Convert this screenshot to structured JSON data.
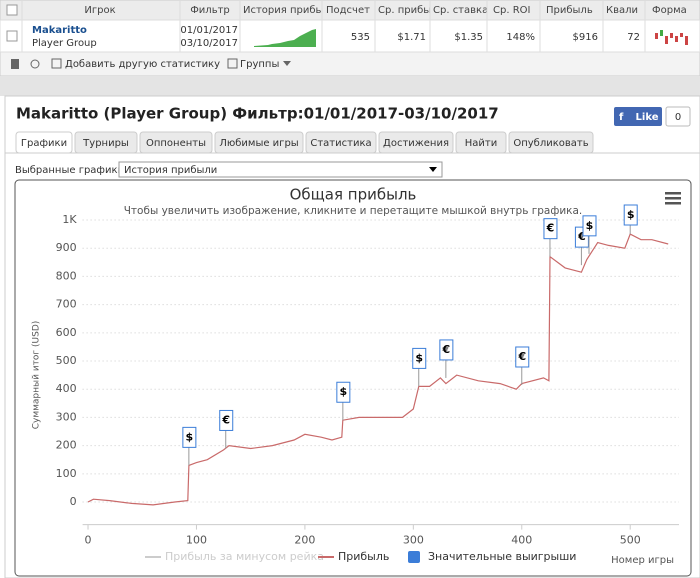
{
  "table": {
    "header": [
      "Игрок",
      "Фильтр",
      "История прибы",
      "Подсчет",
      "Ср. прибы",
      "Ср. ставка",
      "Ср. ROI",
      "Прибыль",
      "Квали",
      "Форма"
    ],
    "row": {
      "player": "Makaritto",
      "group": "Player Group",
      "dates": [
        "01/01/2017",
        "03/10/2017"
      ],
      "cells": [
        "535",
        "$1.71",
        "$1.35",
        "148%",
        "$916",
        "72"
      ]
    }
  },
  "toolbar": {
    "add_stats": "Добавить другую статистику",
    "groups": "Группы"
  },
  "panel": {
    "title": "Makaritto (Player Group) Фильтр:01/01/2017-03/10/2017",
    "like": "Like",
    "like_count": "0",
    "tabs": [
      "Графики",
      "Турниры",
      "Оппоненты",
      "Любимые игры",
      "Статистика",
      "Достижения",
      "Найти",
      "Опубликовать"
    ],
    "selector_label": "Выбранные графики:",
    "selector_value": "История прибыли"
  },
  "chart_data": {
    "type": "line",
    "title": "Общая прибыль",
    "subtitle": "Чтобы увеличить изображение, кликните и перетащите мышкой внутрь графика.",
    "y_label": "Суммарный итог (USD)",
    "x_label": "Номер игры",
    "xlim": [
      -5,
      545
    ],
    "xticks": [
      0,
      100,
      200,
      300,
      400,
      500
    ],
    "ylim": [
      -80,
      1000
    ],
    "yticks": [
      0,
      100,
      200,
      300,
      400,
      500,
      600,
      700,
      800,
      900,
      {
        "value": 1000,
        "label": "1K"
      }
    ],
    "grid": true,
    "series": [
      {
        "name": "Прибыль за минусом рейка",
        "color": "#cccccc",
        "hidden": true
      },
      {
        "name": "Прибыль",
        "color": "#c96a6a",
        "x": [
          0,
          5,
          20,
          40,
          60,
          80,
          92,
          93,
          100,
          110,
          125,
          130,
          150,
          170,
          190,
          200,
          215,
          225,
          234,
          235,
          250,
          270,
          290,
          300,
          305,
          315,
          325,
          330,
          340,
          360,
          380,
          395,
          400,
          420,
          425,
          426,
          440,
          455,
          460,
          470,
          480,
          495,
          500,
          510,
          520,
          535
        ],
        "values": [
          0,
          10,
          5,
          -5,
          -10,
          0,
          5,
          130,
          140,
          150,
          185,
          200,
          190,
          200,
          220,
          240,
          230,
          220,
          230,
          290,
          300,
          300,
          300,
          330,
          410,
          410,
          440,
          420,
          450,
          430,
          420,
          400,
          420,
          440,
          430,
          870,
          830,
          815,
          860,
          920,
          910,
          900,
          950,
          930,
          930,
          915
        ]
      },
      {
        "name": "Значительные выигрыши",
        "color": "#3b7dd8",
        "x": [
          93,
          127,
          235,
          305,
          330,
          400,
          426,
          455,
          462,
          500
        ],
        "values": [
          130,
          190,
          290,
          410,
          440,
          415,
          870,
          840,
          880,
          950
        ],
        "symbols": [
          "$",
          "€",
          "$",
          "$",
          "€",
          "€",
          "€",
          "€",
          "$",
          "$"
        ]
      }
    ]
  }
}
